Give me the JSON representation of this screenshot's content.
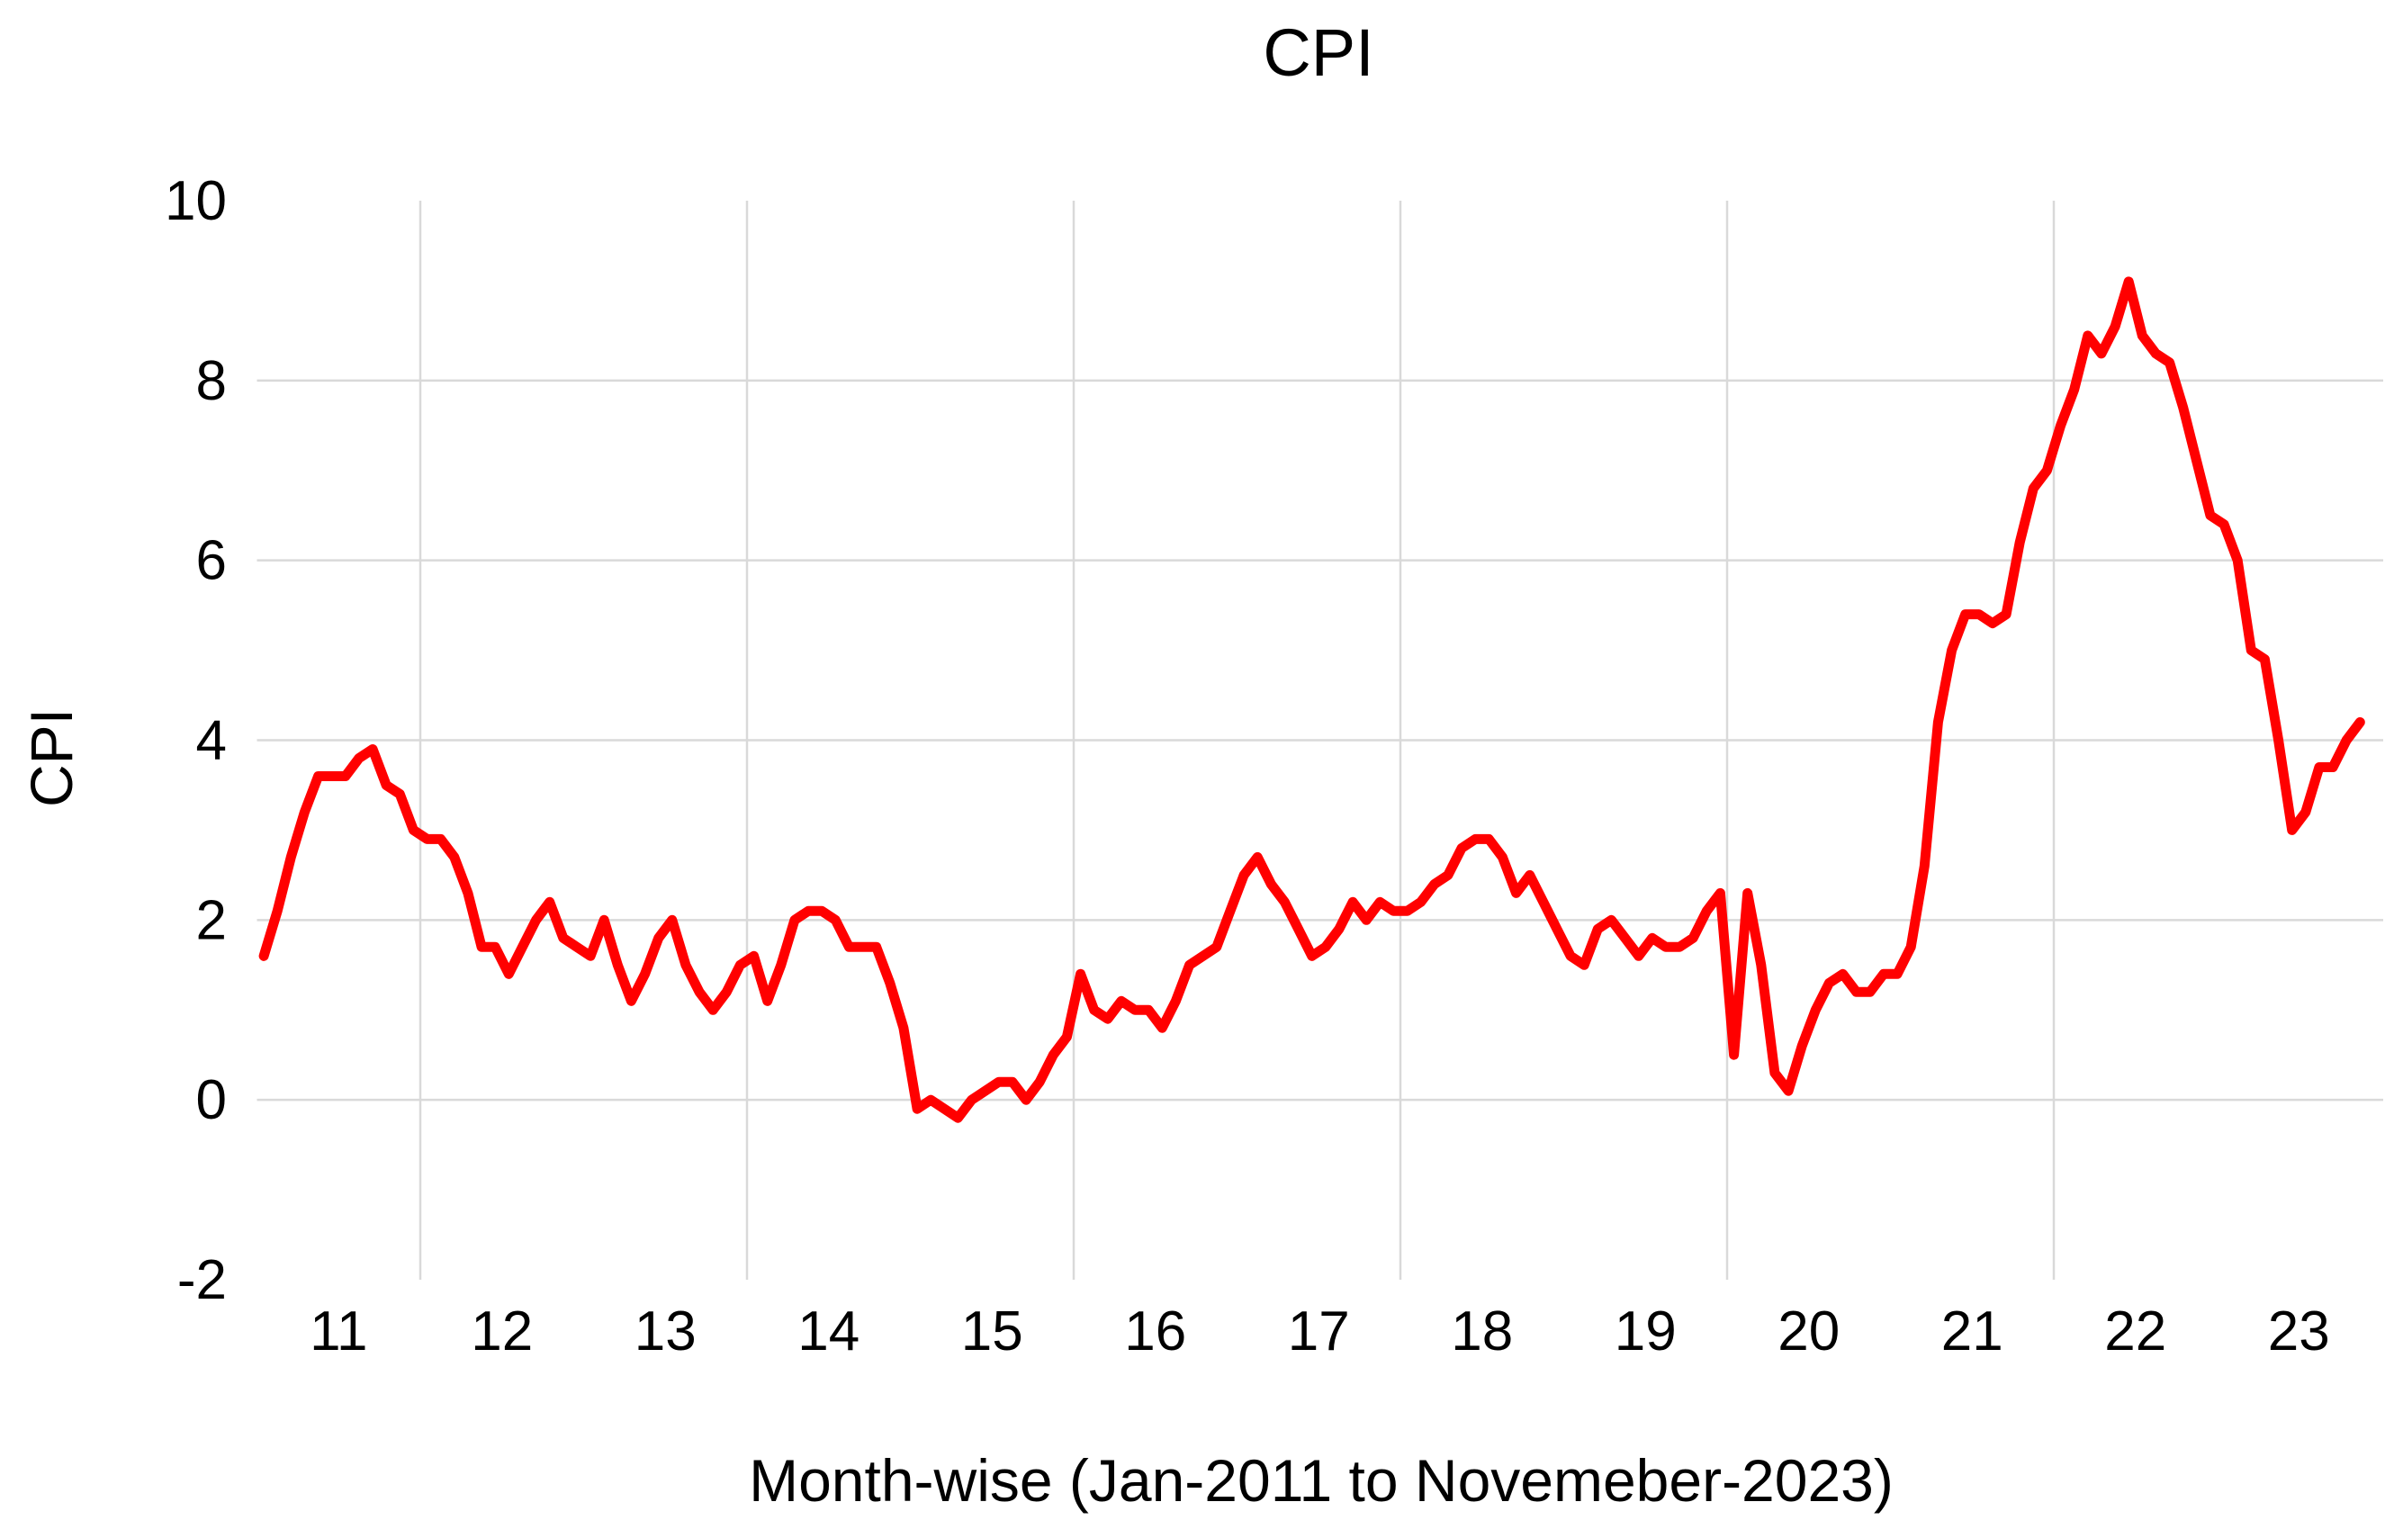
{
  "title": "CPI",
  "colors": {
    "line": "#FF0000",
    "gridline": "#D9D9D9",
    "text": "#000000",
    "background": "#FFFFFF"
  },
  "chart_data": {
    "type": "line",
    "title": "CPI",
    "xlabel": "Month-wise (Jan-2011 to Novemeber-2023)",
    "ylabel": "CPI",
    "x_start": "Jan-2011",
    "x_end": "Nov-2023",
    "frequency": "monthly",
    "ylim": [
      -2,
      10
    ],
    "y_ticks": [
      10,
      8,
      6,
      4,
      2,
      0,
      -2
    ],
    "x_tick_labels": [
      "11",
      "12",
      "13",
      "14",
      "15",
      "16",
      "17",
      "18",
      "19",
      "20",
      "21",
      "22",
      "23"
    ],
    "grid": {
      "y_gridline_values": [
        8,
        6,
        4,
        2,
        0
      ],
      "x_gridline_years": [
        2012,
        2014,
        2016,
        2018,
        2020,
        2022
      ]
    },
    "legend": "none",
    "series": [
      {
        "name": "CPI",
        "color": "#FF0000",
        "values": [
          1.6,
          2.1,
          2.7,
          3.2,
          3.6,
          3.6,
          3.6,
          3.8,
          3.9,
          3.5,
          3.4,
          3.0,
          2.9,
          2.9,
          2.7,
          2.3,
          1.7,
          1.7,
          1.4,
          1.7,
          2.0,
          2.2,
          1.8,
          1.7,
          1.6,
          2.0,
          1.5,
          1.1,
          1.4,
          1.8,
          2.0,
          1.5,
          1.2,
          1.0,
          1.2,
          1.5,
          1.6,
          1.1,
          1.5,
          2.0,
          2.1,
          2.1,
          2.0,
          1.7,
          1.7,
          1.7,
          1.3,
          0.8,
          -0.1,
          0.0,
          -0.1,
          -0.2,
          0.0,
          0.1,
          0.2,
          0.2,
          0.0,
          0.2,
          0.5,
          0.7,
          1.4,
          1.0,
          0.9,
          1.1,
          1.0,
          1.0,
          0.8,
          1.1,
          1.5,
          1.6,
          1.7,
          2.1,
          2.5,
          2.7,
          2.4,
          2.2,
          1.9,
          1.6,
          1.7,
          1.9,
          2.2,
          2.0,
          2.2,
          2.1,
          2.1,
          2.2,
          2.4,
          2.5,
          2.8,
          2.9,
          2.9,
          2.7,
          2.3,
          2.5,
          2.2,
          1.9,
          1.6,
          1.5,
          1.9,
          2.0,
          1.8,
          1.6,
          1.8,
          1.7,
          1.7,
          1.8,
          2.1,
          2.3,
          0.5,
          2.3,
          1.5,
          0.3,
          0.1,
          0.6,
          1.0,
          1.3,
          1.4,
          1.2,
          1.2,
          1.4,
          1.4,
          1.7,
          2.6,
          4.2,
          5.0,
          5.4,
          5.4,
          5.3,
          5.4,
          6.2,
          6.8,
          7.0,
          7.5,
          7.9,
          8.5,
          8.3,
          8.6,
          9.1,
          8.5,
          8.3,
          8.2,
          7.7,
          7.1,
          6.5,
          6.4,
          6.0,
          5.0,
          4.9,
          4.0,
          3.0,
          3.2,
          3.7,
          3.7,
          4.0,
          4.2
        ]
      }
    ]
  }
}
